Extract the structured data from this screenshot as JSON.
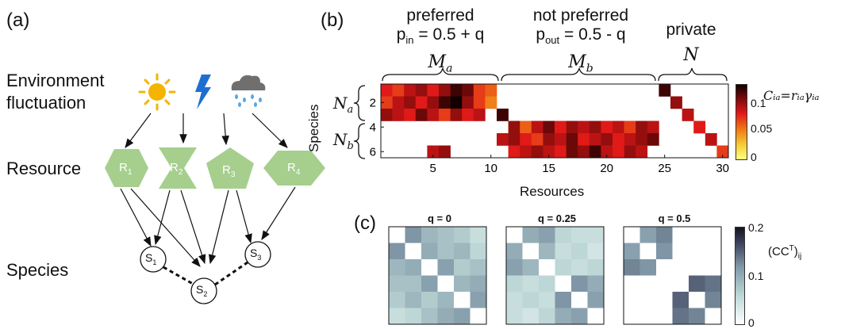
{
  "panel_a": {
    "label": "(a)",
    "env_label_line1": "Environment",
    "env_label_line2": "fluctuation",
    "resource_label": "Resource",
    "species_label": "Species",
    "icons": [
      "sun-icon",
      "lightning-icon",
      "rain-cloud-icon"
    ],
    "resources": [
      {
        "base": "R",
        "sub": "1",
        "shape": "hexagon"
      },
      {
        "base": "R",
        "sub": "2",
        "shape": "hourglass"
      },
      {
        "base": "R",
        "sub": "3",
        "shape": "pentagon"
      },
      {
        "base": "R",
        "sub": "4",
        "shape": "diamond-hexagon"
      }
    ],
    "species": [
      {
        "base": "S",
        "sub": "1"
      },
      {
        "base": "S",
        "sub": "2"
      },
      {
        "base": "S",
        "sub": "3"
      }
    ],
    "colors": {
      "resource_fill": "#a6cf8e",
      "sun": "#f4b400",
      "lightning": "#1f6fd1",
      "cloud": "#6f6f6f",
      "rain": "#5aa7e0"
    }
  },
  "panel_b": {
    "label": "(b)",
    "group_preferred": "preferred",
    "p_in_base": "p",
    "p_in_sub": "in",
    "p_in_rest": " = 0.5 + q",
    "group_not_preferred": "not preferred",
    "p_out_base": "p",
    "p_out_sub": "out",
    "p_out_rest": " = 0.5 - q",
    "group_private": "private",
    "brace_a_base": "M",
    "brace_a_sub": "a",
    "brace_b_base": "M",
    "brace_b_sub": "b",
    "brace_n": "N",
    "ylabel": "Species",
    "na_base": "N",
    "na_sub": "a",
    "nb_base": "N",
    "nb_sub": "b",
    "xlabel": "Resources",
    "xticks": [
      "5",
      "10",
      "15",
      "20",
      "25",
      "30"
    ],
    "yticks": [
      "2",
      "4",
      "6"
    ],
    "colorbar_ticks": [
      "0.1",
      "0.05",
      "0"
    ],
    "colorbar_label": "Cᵢₐ=rᵢₐγᵢₐ"
  },
  "panel_c": {
    "label": "(c)",
    "titles": [
      "q = 0",
      "q = 0.25",
      "q = 0.5"
    ],
    "colorbar_ticks": [
      "0.2",
      "0.1",
      "0"
    ],
    "colorbar_label_base": "(CC",
    "colorbar_label_sup": "T",
    "colorbar_label_end": ")",
    "colorbar_label_sub": "ij"
  },
  "chart_data": [
    {
      "type": "heatmap",
      "title": "",
      "xlabel": "Resources",
      "ylabel": "Species",
      "x_range": [
        1,
        30
      ],
      "y_range": [
        1,
        6
      ],
      "color_range": [
        0,
        0.13
      ],
      "rows": [
        [
          0.08,
          0.07,
          0.09,
          0.1,
          0.08,
          0.1,
          0.12,
          0.11,
          0.07,
          0.06,
          0,
          0,
          0,
          0,
          0,
          0,
          0,
          0,
          0,
          0,
          0,
          0,
          0,
          0,
          0.12,
          0,
          0,
          0,
          0,
          0
        ],
        [
          0.07,
          0.09,
          0.1,
          0.08,
          0.1,
          0.12,
          0.13,
          0.1,
          0.07,
          0.05,
          0,
          0,
          0,
          0,
          0,
          0,
          0,
          0,
          0,
          0,
          0,
          0,
          0,
          0,
          0,
          0.1,
          0,
          0,
          0,
          0
        ],
        [
          0.1,
          0.09,
          0.08,
          0.11,
          0.09,
          0.07,
          0.1,
          0.08,
          0.09,
          0,
          0.12,
          0,
          0,
          0,
          0,
          0,
          0,
          0,
          0,
          0,
          0,
          0,
          0,
          0,
          0,
          0,
          0.09,
          0,
          0,
          0
        ],
        [
          0,
          0,
          0,
          0,
          0,
          0,
          0,
          0,
          0,
          0,
          0,
          0.1,
          0.06,
          0.09,
          0.11,
          0.08,
          0.1,
          0.09,
          0.1,
          0.08,
          0.09,
          0.07,
          0.1,
          0.09,
          0,
          0,
          0,
          0.08,
          0,
          0
        ],
        [
          0,
          0,
          0,
          0,
          0,
          0,
          0,
          0,
          0,
          0,
          0.09,
          0.1,
          0.08,
          0.07,
          0.1,
          0.09,
          0.11,
          0.08,
          0.09,
          0.1,
          0.08,
          0.09,
          0.1,
          0.11,
          0,
          0,
          0,
          0,
          0.09,
          0
        ],
        [
          0,
          0,
          0,
          0,
          0.09,
          0.1,
          0,
          0,
          0,
          0,
          0,
          0.08,
          0.09,
          0.1,
          0.09,
          0.08,
          0.11,
          0.1,
          0.12,
          0.09,
          0.08,
          0.1,
          0.09,
          0,
          0,
          0,
          0,
          0,
          0,
          0.07
        ]
      ]
    },
    {
      "type": "heatmap",
      "title": "q = 0",
      "color_range": [
        0,
        0.2
      ],
      "matrix": [
        [
          0,
          0.12,
          0.09,
          0.08,
          0.07,
          0.05
        ],
        [
          0.12,
          0,
          0.1,
          0.08,
          0.09,
          0.06
        ],
        [
          0.09,
          0.1,
          0,
          0.11,
          0.07,
          0.08
        ],
        [
          0.08,
          0.08,
          0.11,
          0,
          0.09,
          0.1
        ],
        [
          0.07,
          0.09,
          0.07,
          0.09,
          0,
          0.11
        ],
        [
          0.05,
          0.06,
          0.08,
          0.1,
          0.11,
          0
        ]
      ]
    },
    {
      "type": "heatmap",
      "title": "q = 0.25",
      "color_range": [
        0,
        0.2
      ],
      "matrix": [
        [
          0,
          0.1,
          0.11,
          0.06,
          0.05,
          0.05
        ],
        [
          0.1,
          0,
          0.09,
          0.05,
          0.06,
          0.04
        ],
        [
          0.11,
          0.09,
          0,
          0.06,
          0.05,
          0.06
        ],
        [
          0.06,
          0.05,
          0.06,
          0,
          0.12,
          0.1
        ],
        [
          0.05,
          0.06,
          0.05,
          0.12,
          0,
          0.11
        ],
        [
          0.05,
          0.04,
          0.06,
          0.1,
          0.11,
          0
        ]
      ]
    },
    {
      "type": "heatmap",
      "title": "q = 0.5",
      "color_range": [
        0,
        0.2
      ],
      "matrix": [
        [
          0,
          0.11,
          0.13,
          0,
          0,
          0
        ],
        [
          0.11,
          0,
          0.12,
          0,
          0,
          0
        ],
        [
          0.13,
          0.12,
          0,
          0,
          0,
          0
        ],
        [
          0,
          0,
          0,
          0,
          0.15,
          0.14
        ],
        [
          0,
          0,
          0,
          0.15,
          0,
          0.13
        ],
        [
          0,
          0,
          0,
          0.14,
          0.13,
          0
        ]
      ]
    }
  ]
}
